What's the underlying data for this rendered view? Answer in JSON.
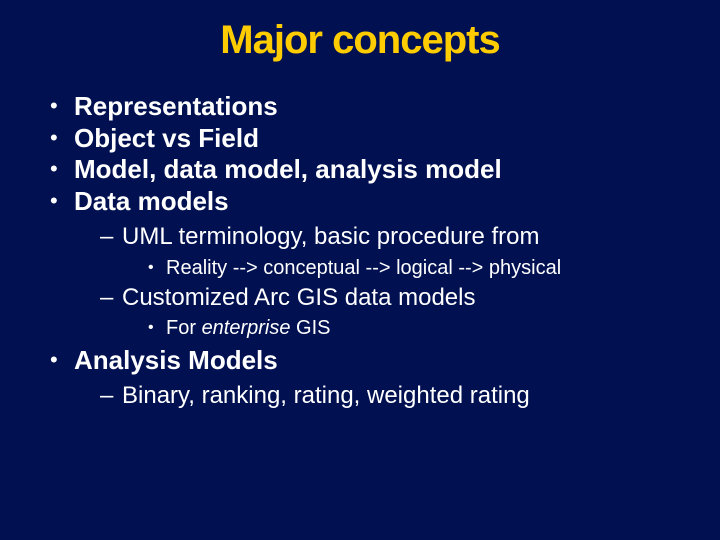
{
  "background_color": "#001050",
  "title_color": "#ffcc00",
  "text_color": "#ffffff",
  "title_fontsize": 40,
  "l1_fontsize": 26,
  "l2_fontsize": 24,
  "l3_fontsize": 20,
  "title": "Major concepts",
  "bullets": {
    "b1": "Representations",
    "b2": "Object vs Field",
    "b3": "Model, data model, analysis model",
    "b4": "Data models",
    "b4_s1": "UML terminology, basic procedure from",
    "b4_s1_s1": "Reality --> conceptual --> logical --> physical",
    "b4_s2": "Customized Arc GIS data models",
    "b4_s2_s1_pre": "For ",
    "b4_s2_s1_it": "enterprise",
    "b4_s2_s1_post": " GIS",
    "b5": "Analysis Models",
    "b5_s1": "Binary, ranking, rating, weighted rating"
  }
}
